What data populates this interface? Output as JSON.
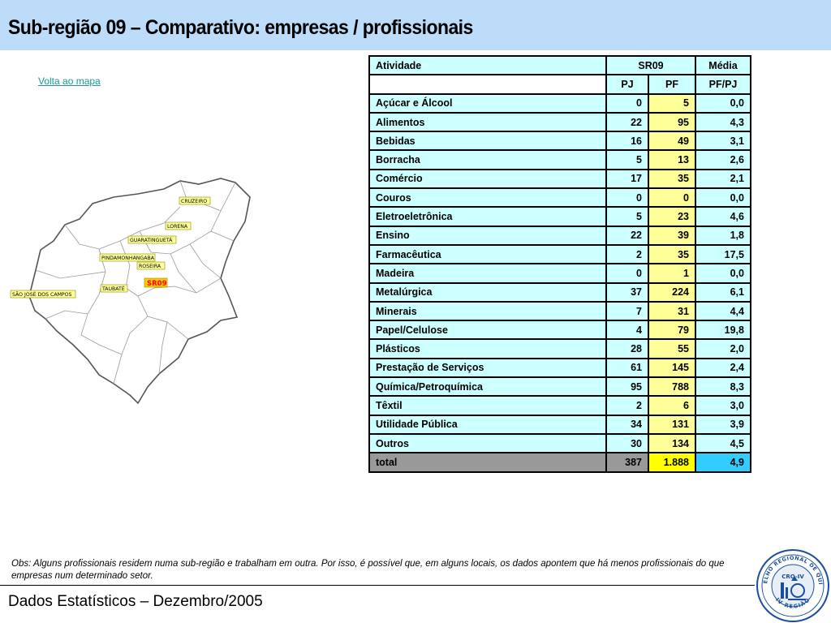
{
  "header": {
    "title": "Sub-região 09 – Comparativo: empresas / profissionais"
  },
  "nav": {
    "back_link": "Volta ao mapa"
  },
  "map": {
    "labels": [
      "CRUZEIRO",
      "LORENA",
      "GUARATINGUETÁ",
      "PINDAMONHANGABA",
      "ROSEIRA",
      "SR09",
      "TAUBATÉ",
      "SÃO JOSÉ DOS CAMPOS"
    ],
    "label_bg": "#ffff99",
    "highlight_bg": "#ffcc00",
    "highlight_text": "#ff0000"
  },
  "table": {
    "headers": {
      "activity": "Atividade",
      "group": "SR09",
      "media": "Média",
      "pj": "PJ",
      "pf": "PF",
      "ratio": "PF/PJ"
    },
    "rows": [
      {
        "activity": "Açúcar e Álcool",
        "pj": "0",
        "pf": "5",
        "media": "0,0"
      },
      {
        "activity": "Alimentos",
        "pj": "22",
        "pf": "95",
        "media": "4,3"
      },
      {
        "activity": "Bebidas",
        "pj": "16",
        "pf": "49",
        "media": "3,1"
      },
      {
        "activity": "Borracha",
        "pj": "5",
        "pf": "13",
        "media": "2,6"
      },
      {
        "activity": "Comércio",
        "pj": "17",
        "pf": "35",
        "media": "2,1"
      },
      {
        "activity": "Couros",
        "pj": "0",
        "pf": "0",
        "media": "0,0"
      },
      {
        "activity": "Eletroeletrônica",
        "pj": "5",
        "pf": "23",
        "media": "4,6"
      },
      {
        "activity": "Ensino",
        "pj": "22",
        "pf": "39",
        "media": "1,8"
      },
      {
        "activity": "Farmacêutica",
        "pj": "2",
        "pf": "35",
        "media": "17,5"
      },
      {
        "activity": "Madeira",
        "pj": "0",
        "pf": "1",
        "media": "0,0"
      },
      {
        "activity": "Metalúrgica",
        "pj": "37",
        "pf": "224",
        "media": "6,1"
      },
      {
        "activity": "Minerais",
        "pj": "7",
        "pf": "31",
        "media": "4,4"
      },
      {
        "activity": "Papel/Celulose",
        "pj": "4",
        "pf": "79",
        "media": "19,8"
      },
      {
        "activity": "Plásticos",
        "pj": "28",
        "pf": "55",
        "media": "2,0"
      },
      {
        "activity": "Prestação de Serviços",
        "pj": "61",
        "pf": "145",
        "media": "2,4"
      },
      {
        "activity": "Química/Petroquímica",
        "pj": "95",
        "pf": "788",
        "media": "8,3"
      },
      {
        "activity": "Têxtil",
        "pj": "2",
        "pf": "6",
        "media": "3,0"
      },
      {
        "activity": "Utilidade Pública",
        "pj": "34",
        "pf": "131",
        "media": "3,9"
      },
      {
        "activity": "Outros",
        "pj": "30",
        "pf": "134",
        "media": "4,5"
      }
    ],
    "total": {
      "activity": "total",
      "pj": "387",
      "pf": "1.888",
      "media": "4,9"
    }
  },
  "obs": "Obs: Alguns profissionais residem numa sub-região e trabalham em outra. Por isso, é possível que, em alguns locais, os dados apontem que há menos profissionais do que empresas num determinado setor.",
  "footer": {
    "text": "Dados Estatísticos – Dezembro/2005"
  },
  "seal": {
    "ring_text": "CONSELHO REGIONAL DE QUÍMICA",
    "bottom_text": "IV REGIÃO",
    "center_text": "CRQ-IV",
    "ring_color": "#1a4f9c"
  }
}
